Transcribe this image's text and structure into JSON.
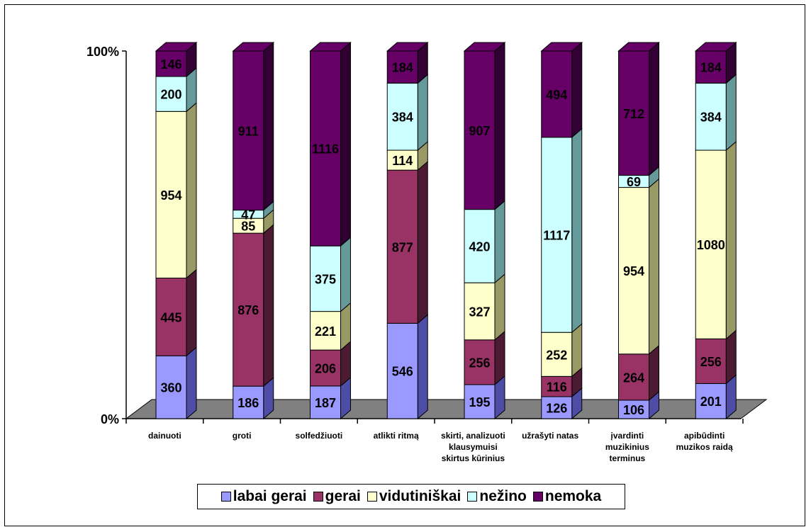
{
  "chart_data": {
    "type": "bar",
    "stacked": "percent",
    "three_d": true,
    "categories": [
      [
        "dainuoti"
      ],
      [
        "groti"
      ],
      [
        "solfedžiuoti"
      ],
      [
        "atlikti ritmą"
      ],
      [
        "skirti, analizuoti",
        "klausymuisi",
        "skirtus kūrinius"
      ],
      [
        "užrašyti natas"
      ],
      [
        "įvardinti",
        "muzikinius",
        "terminus"
      ],
      [
        "apibūdinti",
        "muzikos raidą"
      ]
    ],
    "y_ticks": [
      "0%",
      "100%"
    ],
    "series": [
      {
        "name": "labai gerai",
        "color": "#9999ff",
        "side_color": "#4d4da6",
        "values": [
          360,
          186,
          187,
          546,
          195,
          126,
          106,
          201
        ]
      },
      {
        "name": "gerai",
        "color": "#993366",
        "side_color": "#4d1a33",
        "values": [
          445,
          876,
          206,
          877,
          256,
          116,
          264,
          256
        ]
      },
      {
        "name": "vidutiniškai",
        "color": "#ffffcc",
        "side_color": "#999966",
        "values": [
          954,
          85,
          221,
          114,
          327,
          252,
          954,
          1080
        ]
      },
      {
        "name": "nežino",
        "color": "#ccffff",
        "side_color": "#669999",
        "values": [
          200,
          47,
          375,
          384,
          420,
          1117,
          69,
          384
        ]
      },
      {
        "name": "nemoka",
        "color": "#660066",
        "side_color": "#330033",
        "values": [
          146,
          911,
          1116,
          184,
          907,
          494,
          712,
          184
        ]
      }
    ],
    "legend_position": "bottom",
    "grid": false
  }
}
